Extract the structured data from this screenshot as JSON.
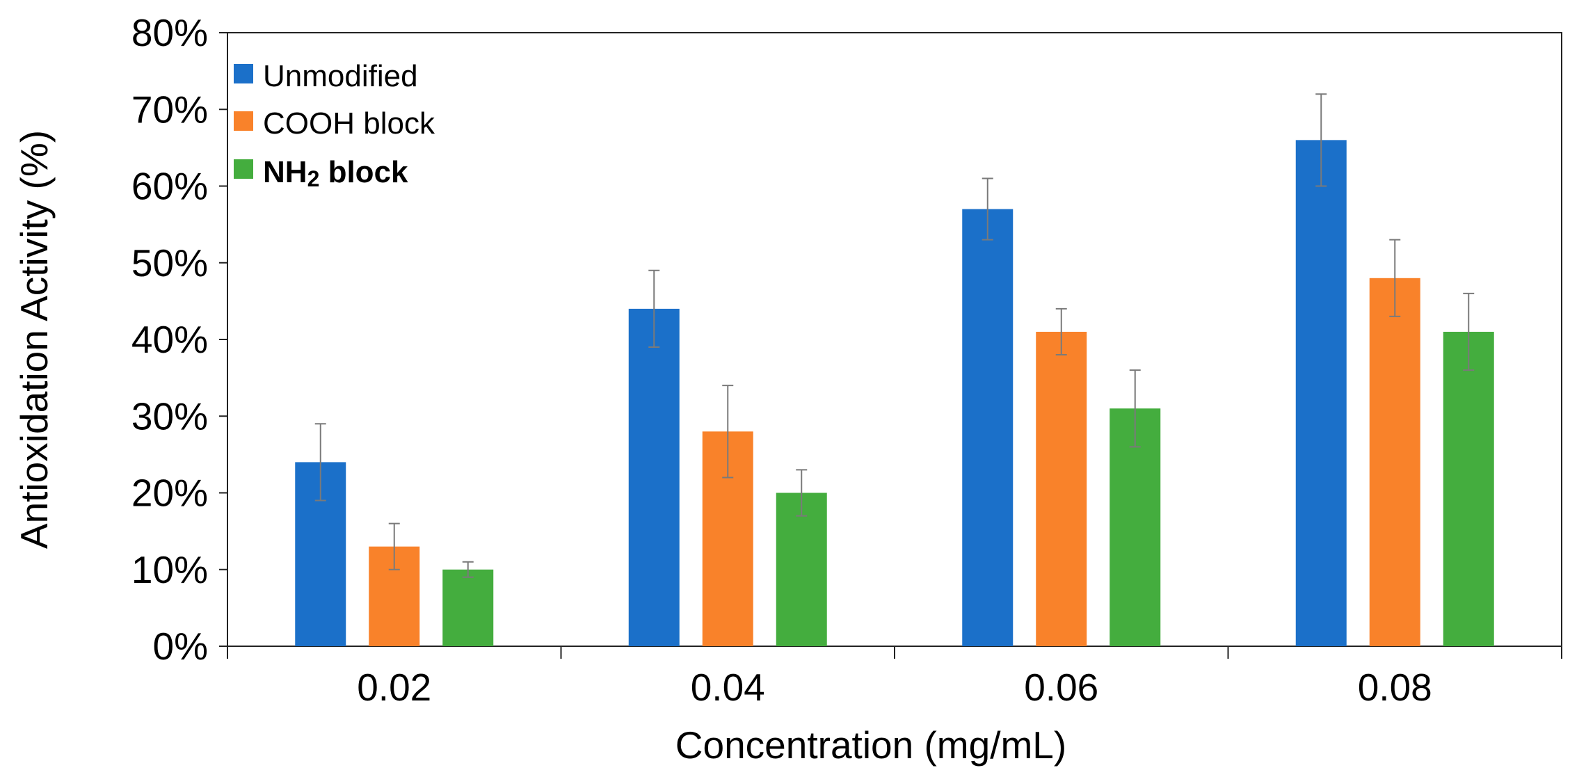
{
  "chart_data": {
    "type": "bar",
    "title": "",
    "xlabel": "Concentration (mg/mL)",
    "ylabel": "Antioxidation Activity (%)",
    "ylim": [
      0,
      80
    ],
    "y_tick_step": 10,
    "y_tick_labels": [
      "0%",
      "10%",
      "20%",
      "30%",
      "40%",
      "50%",
      "60%",
      "70%",
      "80%"
    ],
    "grid": false,
    "legend_position": "top-left",
    "categories": [
      "0.02",
      "0.04",
      "0.06",
      "0.08"
    ],
    "series": [
      {
        "name": "Unmodified",
        "color": "#1b70c9",
        "values": [
          24,
          44,
          57,
          66
        ],
        "errors": [
          5,
          5,
          4,
          6
        ]
      },
      {
        "name": "COOH block",
        "color": "#f9822a",
        "values": [
          13,
          28,
          41,
          48
        ],
        "errors": [
          3,
          6,
          3,
          5
        ]
      },
      {
        "name": "NH2 block",
        "name_main": "NH",
        "name_sub": "2",
        "name_rest": " block",
        "color": "#44ad3e",
        "values": [
          10,
          20,
          31,
          41
        ],
        "errors": [
          1,
          3,
          5,
          5
        ]
      }
    ]
  }
}
